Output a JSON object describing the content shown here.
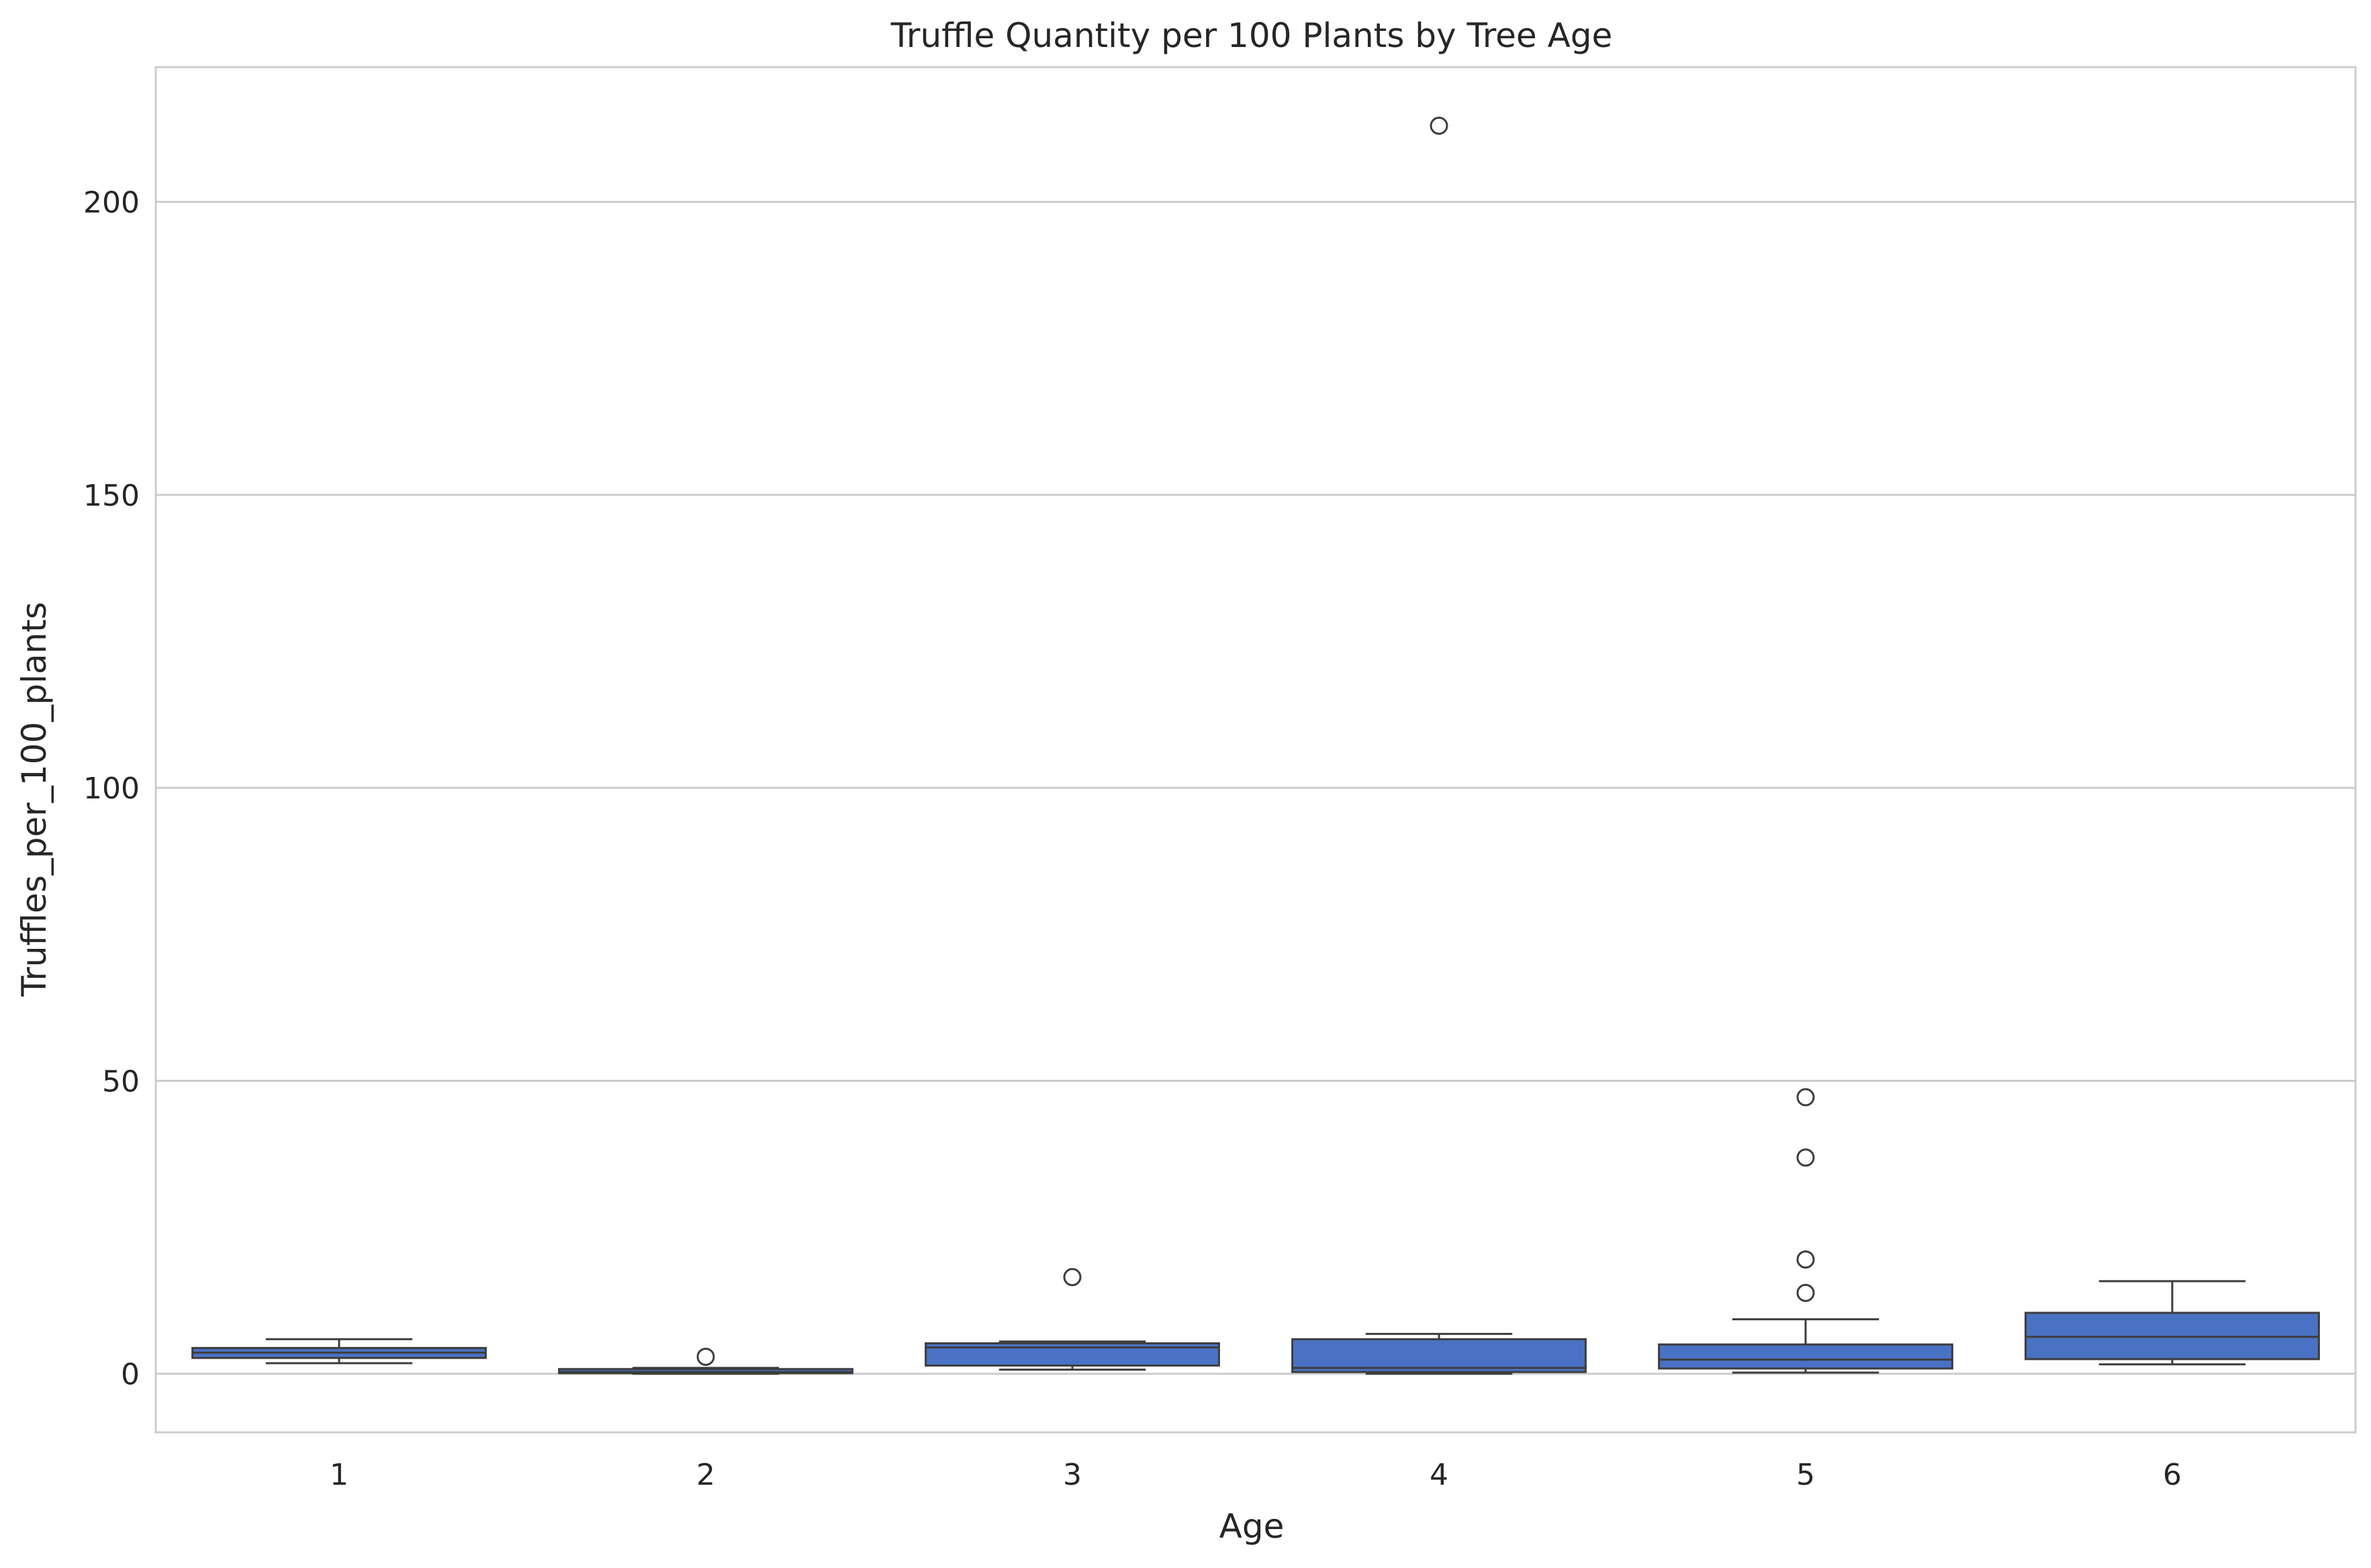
{
  "chart_data": {
    "type": "box",
    "title": "Truffle Quantity per 100 Plants by Tree Age",
    "xlabel": "Age",
    "ylabel": "Truffles_per_100_plants",
    "categories": [
      "1",
      "2",
      "3",
      "4",
      "5",
      "6"
    ],
    "ylim": [
      -10,
      223
    ],
    "yticks": [
      0,
      50,
      100,
      150,
      200
    ],
    "grid": "horizontal",
    "legend": "none",
    "box_color": "#4a72c4",
    "line_color": "#3d3d3d",
    "grid_color": "#cccccc",
    "boxes": [
      {
        "category": "1",
        "whisker_low": 1.8,
        "q1": 2.7,
        "median": 3.6,
        "q3": 4.4,
        "whisker_high": 5.9,
        "outliers": []
      },
      {
        "category": "2",
        "whisker_low": 0.0,
        "q1": 0.1,
        "median": 0.3,
        "q3": 0.8,
        "whisker_high": 1.0,
        "outliers": [
          2.9
        ]
      },
      {
        "category": "3",
        "whisker_low": 0.7,
        "q1": 1.4,
        "median": 4.5,
        "q3": 5.2,
        "whisker_high": 5.5,
        "outliers": [
          16.5
        ]
      },
      {
        "category": "4",
        "whisker_low": 0.0,
        "q1": 0.3,
        "median": 1.0,
        "q3": 5.9,
        "whisker_high": 6.8,
        "outliers": [
          213
        ]
      },
      {
        "category": "5",
        "whisker_low": 0.2,
        "q1": 0.9,
        "median": 2.4,
        "q3": 5.0,
        "whisker_high": 9.3,
        "outliers": [
          47.2,
          36.9,
          19.5,
          13.8
        ]
      },
      {
        "category": "6",
        "whisker_low": 1.6,
        "q1": 2.5,
        "median": 6.3,
        "q3": 10.4,
        "whisker_high": 15.8,
        "outliers": []
      }
    ]
  }
}
